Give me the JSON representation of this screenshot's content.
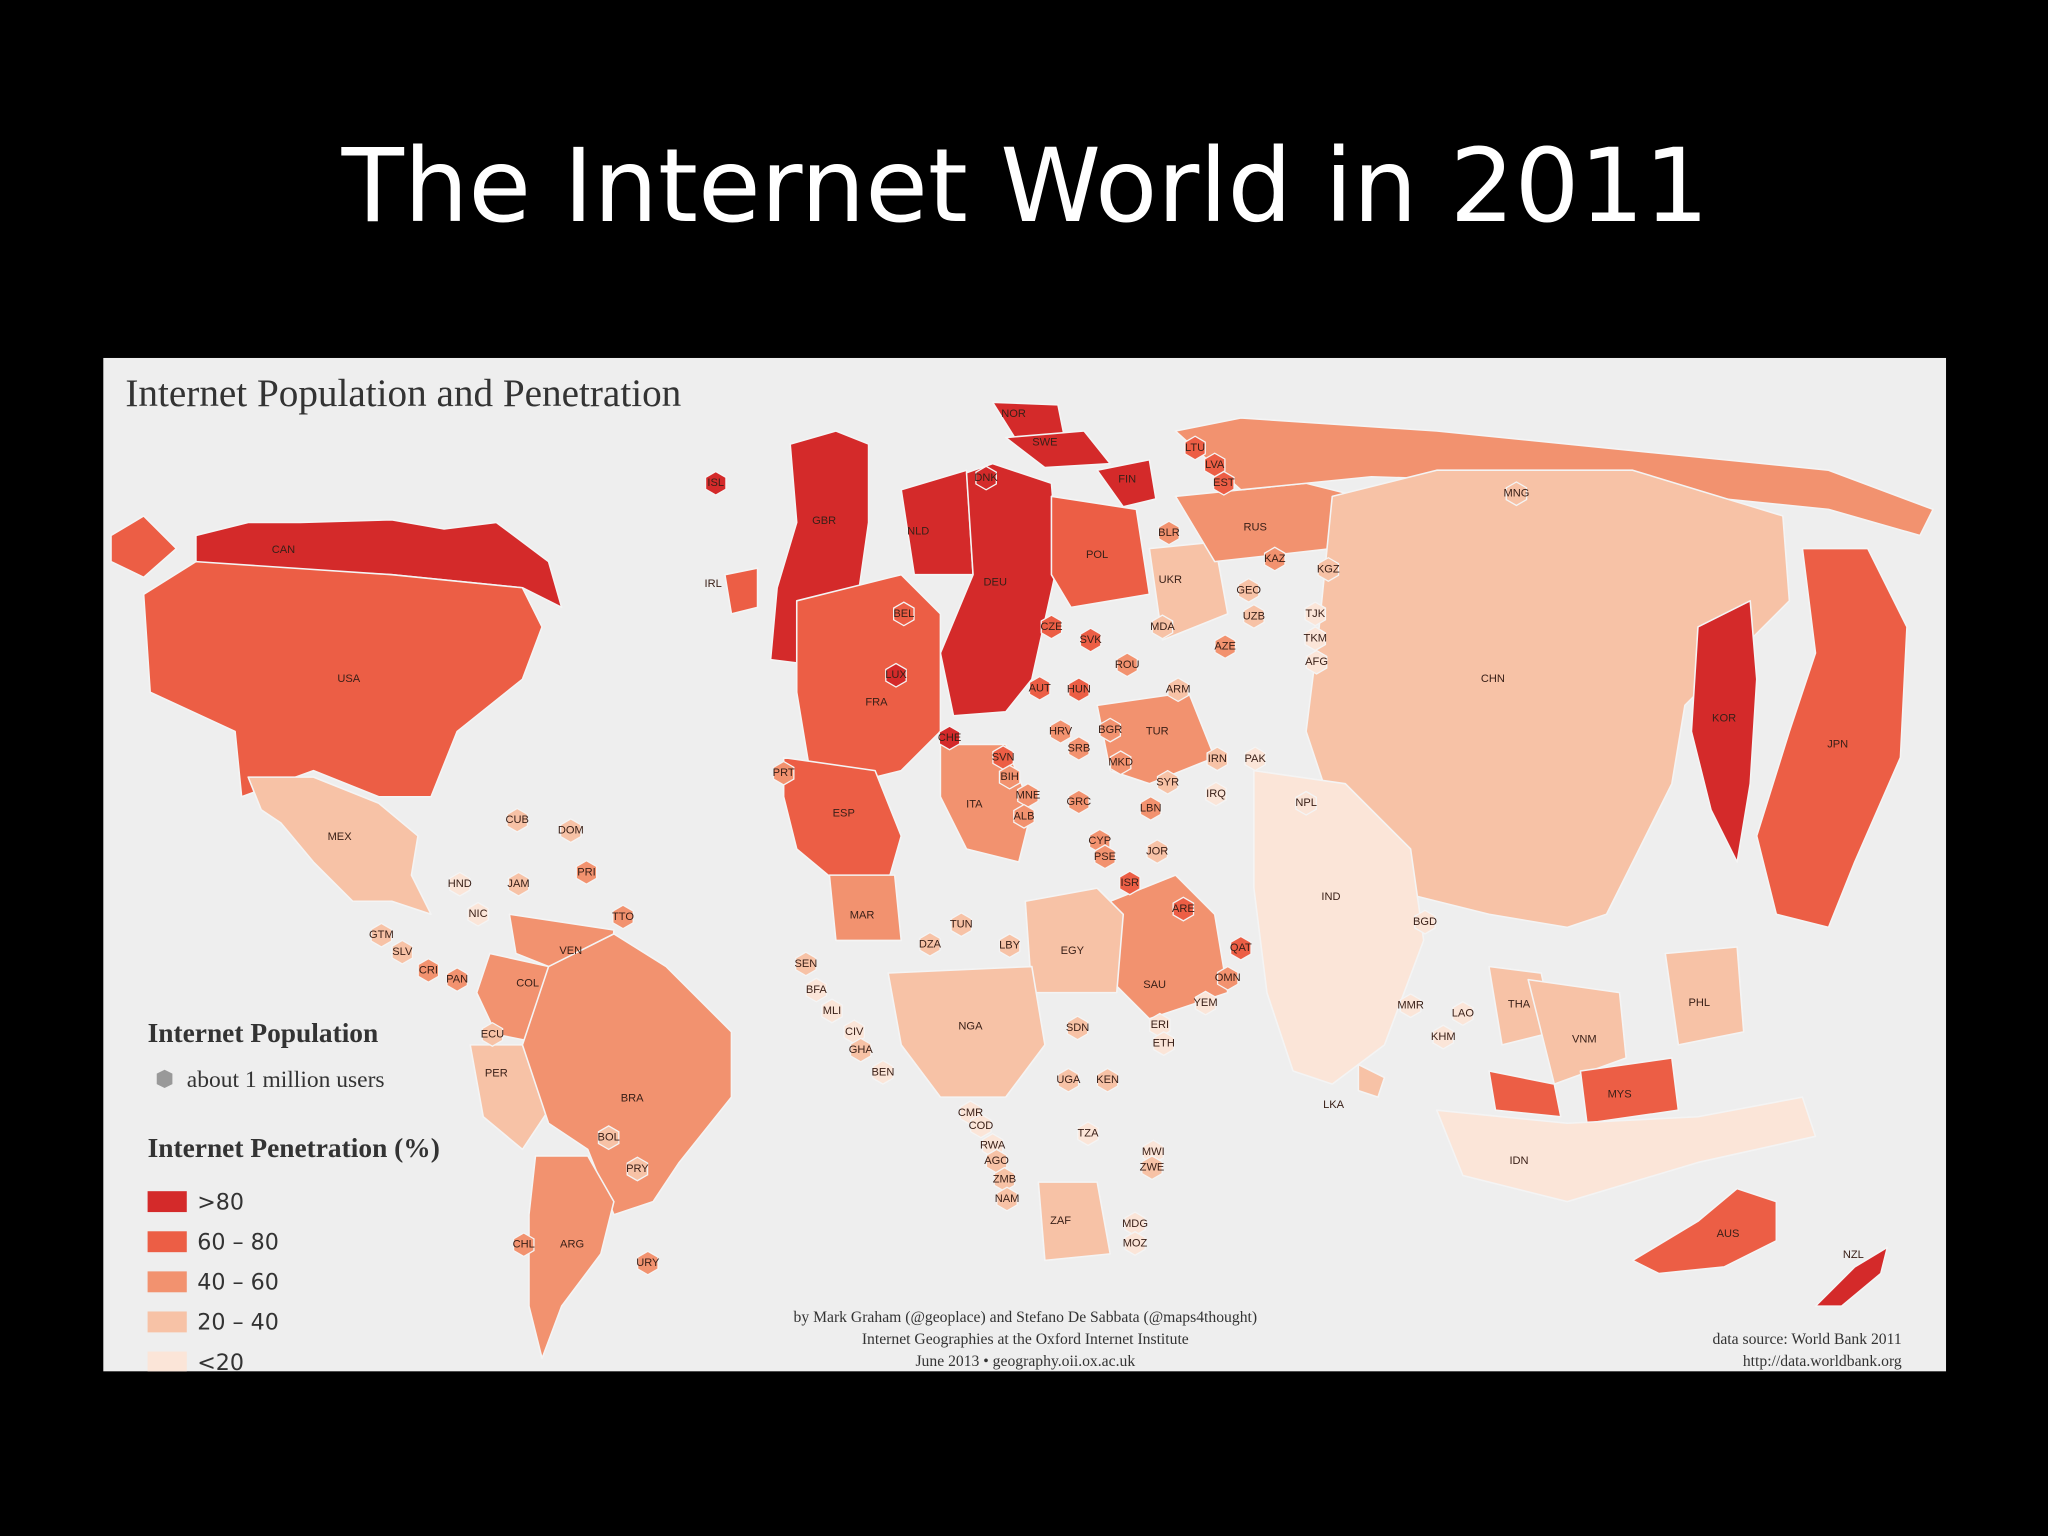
{
  "title": "The Internet World in 2011",
  "map": {
    "title": "Internet Population and Penetration",
    "population_legend": {
      "title": "Internet Population",
      "item": "about 1 million users"
    },
    "penetration_legend": {
      "title": "Internet Penetration (%)",
      "items": [
        {
          "label": ">80",
          "color": "#d42a2a"
        },
        {
          "label": "60 – 80",
          "color": "#ec5e45"
        },
        {
          "label": "40 – 60",
          "color": "#f2926f"
        },
        {
          "label": "20 – 40",
          "color": "#f7c2a6"
        },
        {
          "label": "<20",
          "color": "#fbe5d8"
        }
      ]
    },
    "countries": [
      {
        "code": "CAN",
        "color": "#d42a2a"
      },
      {
        "code": "USA",
        "color": "#ec5e45"
      },
      {
        "code": "MEX",
        "color": "#f7c2a6"
      },
      {
        "code": "CUB",
        "color": "#f7c2a6"
      },
      {
        "code": "DOM",
        "color": "#f7c2a6"
      },
      {
        "code": "JAM",
        "color": "#f7c2a6"
      },
      {
        "code": "PRI",
        "color": "#f2926f"
      },
      {
        "code": "TTO",
        "color": "#f2926f"
      },
      {
        "code": "HND",
        "color": "#fbe5d8"
      },
      {
        "code": "NIC",
        "color": "#fbe5d8"
      },
      {
        "code": "GTM",
        "color": "#f7c2a6"
      },
      {
        "code": "SLV",
        "color": "#f7c2a6"
      },
      {
        "code": "CRI",
        "color": "#f2926f"
      },
      {
        "code": "PAN",
        "color": "#f2926f"
      },
      {
        "code": "VEN",
        "color": "#f2926f"
      },
      {
        "code": "COL",
        "color": "#f2926f"
      },
      {
        "code": "ECU",
        "color": "#f7c2a6"
      },
      {
        "code": "PER",
        "color": "#f7c2a6"
      },
      {
        "code": "BRA",
        "color": "#f2926f"
      },
      {
        "code": "BOL",
        "color": "#f7c2a6"
      },
      {
        "code": "PRY",
        "color": "#f7c2a6"
      },
      {
        "code": "ARG",
        "color": "#f2926f"
      },
      {
        "code": "CHL",
        "color": "#f2926f"
      },
      {
        "code": "URY",
        "color": "#f2926f"
      },
      {
        "code": "ISL",
        "color": "#d42a2a"
      },
      {
        "code": "IRL",
        "color": "#ec5e45"
      },
      {
        "code": "GBR",
        "color": "#d42a2a"
      },
      {
        "code": "NOR",
        "color": "#d42a2a"
      },
      {
        "code": "SWE",
        "color": "#d42a2a"
      },
      {
        "code": "FIN",
        "color": "#d42a2a"
      },
      {
        "code": "DNK",
        "color": "#d42a2a"
      },
      {
        "code": "NLD",
        "color": "#d42a2a"
      },
      {
        "code": "DEU",
        "color": "#d42a2a"
      },
      {
        "code": "BEL",
        "color": "#ec5e45"
      },
      {
        "code": "LUX",
        "color": "#d42a2a"
      },
      {
        "code": "FRA",
        "color": "#ec5e45"
      },
      {
        "code": "CHE",
        "color": "#d42a2a"
      },
      {
        "code": "ESP",
        "color": "#ec5e45"
      },
      {
        "code": "PRT",
        "color": "#f2926f"
      },
      {
        "code": "POL",
        "color": "#ec5e45"
      },
      {
        "code": "CZE",
        "color": "#ec5e45"
      },
      {
        "code": "SVK",
        "color": "#ec5e45"
      },
      {
        "code": "AUT",
        "color": "#ec5e45"
      },
      {
        "code": "HUN",
        "color": "#ec5e45"
      },
      {
        "code": "ROU",
        "color": "#f2926f"
      },
      {
        "code": "MDA",
        "color": "#f7c2a6"
      },
      {
        "code": "UKR",
        "color": "#f7c2a6"
      },
      {
        "code": "BLR",
        "color": "#f2926f"
      },
      {
        "code": "RUS",
        "color": "#f2926f"
      },
      {
        "code": "LTU",
        "color": "#ec5e45"
      },
      {
        "code": "LVA",
        "color": "#ec5e45"
      },
      {
        "code": "EST",
        "color": "#ec5e45"
      },
      {
        "code": "ITA",
        "color": "#f2926f"
      },
      {
        "code": "HRV",
        "color": "#f2926f"
      },
      {
        "code": "SVN",
        "color": "#ec5e45"
      },
      {
        "code": "BIH",
        "color": "#f2926f"
      },
      {
        "code": "SRB",
        "color": "#f2926f"
      },
      {
        "code": "MNE",
        "color": "#f2926f"
      },
      {
        "code": "ALB",
        "color": "#f2926f"
      },
      {
        "code": "GRC",
        "color": "#f2926f"
      },
      {
        "code": "MKD",
        "color": "#f2926f"
      },
      {
        "code": "BGR",
        "color": "#f2926f"
      },
      {
        "code": "TUR",
        "color": "#f2926f"
      },
      {
        "code": "ARM",
        "color": "#f7c2a6"
      },
      {
        "code": "AZE",
        "color": "#f2926f"
      },
      {
        "code": "GEO",
        "color": "#f7c2a6"
      },
      {
        "code": "KAZ",
        "color": "#f2926f"
      },
      {
        "code": "KGZ",
        "color": "#f7c2a6"
      },
      {
        "code": "UZB",
        "color": "#f7c2a6"
      },
      {
        "code": "TJK",
        "color": "#fbe5d8"
      },
      {
        "code": "TKM",
        "color": "#fbe5d8"
      },
      {
        "code": "AFG",
        "color": "#fbe5d8"
      },
      {
        "code": "SYR",
        "color": "#f7c2a6"
      },
      {
        "code": "LBN",
        "color": "#f2926f"
      },
      {
        "code": "IRQ",
        "color": "#fbe5d8"
      },
      {
        "code": "IRN",
        "color": "#f7c2a6"
      },
      {
        "code": "CYP",
        "color": "#f2926f"
      },
      {
        "code": "PSE",
        "color": "#f2926f"
      },
      {
        "code": "JOR",
        "color": "#f7c2a6"
      },
      {
        "code": "ISR",
        "color": "#ec5e45"
      },
      {
        "code": "SAU",
        "color": "#f2926f"
      },
      {
        "code": "ARE",
        "color": "#ec5e45"
      },
      {
        "code": "QAT",
        "color": "#ec5e45"
      },
      {
        "code": "OMN",
        "color": "#f2926f"
      },
      {
        "code": "YEM",
        "color": "#fbe5d8"
      },
      {
        "code": "PAK",
        "color": "#fbe5d8"
      },
      {
        "code": "MAR",
        "color": "#f2926f"
      },
      {
        "code": "DZA",
        "color": "#f7c2a6"
      },
      {
        "code": "TUN",
        "color": "#f7c2a6"
      },
      {
        "code": "LBY",
        "color": "#f7c2a6"
      },
      {
        "code": "EGY",
        "color": "#f7c2a6"
      },
      {
        "code": "SEN",
        "color": "#f7c2a6"
      },
      {
        "code": "BFA",
        "color": "#fbe5d8"
      },
      {
        "code": "MLI",
        "color": "#fbe5d8"
      },
      {
        "code": "CIV",
        "color": "#fbe5d8"
      },
      {
        "code": "GHA",
        "color": "#f7c2a6"
      },
      {
        "code": "BEN",
        "color": "#fbe5d8"
      },
      {
        "code": "NGA",
        "color": "#f7c2a6"
      },
      {
        "code": "SDN",
        "color": "#f7c2a6"
      },
      {
        "code": "ERI",
        "color": "#fbe5d8"
      },
      {
        "code": "ETH",
        "color": "#fbe5d8"
      },
      {
        "code": "UGA",
        "color": "#f7c2a6"
      },
      {
        "code": "KEN",
        "color": "#f7c2a6"
      },
      {
        "code": "CMR",
        "color": "#fbe5d8"
      },
      {
        "code": "COD",
        "color": "#fbe5d8"
      },
      {
        "code": "RWA",
        "color": "#fbe5d8"
      },
      {
        "code": "AGO",
        "color": "#f7c2a6"
      },
      {
        "code": "ZMB",
        "color": "#f7c2a6"
      },
      {
        "code": "NAM",
        "color": "#f7c2a6"
      },
      {
        "code": "TZA",
        "color": "#fbe5d8"
      },
      {
        "code": "MWI",
        "color": "#fbe5d8"
      },
      {
        "code": "ZWE",
        "color": "#f7c2a6"
      },
      {
        "code": "ZAF",
        "color": "#f7c2a6"
      },
      {
        "code": "MDG",
        "color": "#fbe5d8"
      },
      {
        "code": "MOZ",
        "color": "#fbe5d8"
      },
      {
        "code": "MNG",
        "color": "#f7c2a6"
      },
      {
        "code": "CHN",
        "color": "#f7c2a6"
      },
      {
        "code": "IND",
        "color": "#fbe5d8"
      },
      {
        "code": "NPL",
        "color": "#fbe5d8"
      },
      {
        "code": "BGD",
        "color": "#fbe5d8"
      },
      {
        "code": "LKA",
        "color": "#f7c2a6"
      },
      {
        "code": "MMR",
        "color": "#fbe5d8"
      },
      {
        "code": "THA",
        "color": "#f7c2a6"
      },
      {
        "code": "LAO",
        "color": "#fbe5d8"
      },
      {
        "code": "KHM",
        "color": "#fbe5d8"
      },
      {
        "code": "VNM",
        "color": "#f7c2a6"
      },
      {
        "code": "KOR",
        "color": "#d42a2a"
      },
      {
        "code": "JPN",
        "color": "#ec5e45"
      },
      {
        "code": "PHL",
        "color": "#f7c2a6"
      },
      {
        "code": "MYS",
        "color": "#ec5e45"
      },
      {
        "code": "IDN",
        "color": "#fbe5d8"
      },
      {
        "code": "AUS",
        "color": "#ec5e45"
      },
      {
        "code": "NZL",
        "color": "#d42a2a"
      }
    ],
    "credits": [
      "by Mark Graham (@geoplace) and Stefano De Sabbata (@maps4thought)",
      "Internet Geographies at the Oxford Internet Institute",
      "June 2013 • geography.oii.ox.ac.uk"
    ],
    "source": [
      "data source: World Bank 2011",
      "http://data.worldbank.org"
    ]
  }
}
